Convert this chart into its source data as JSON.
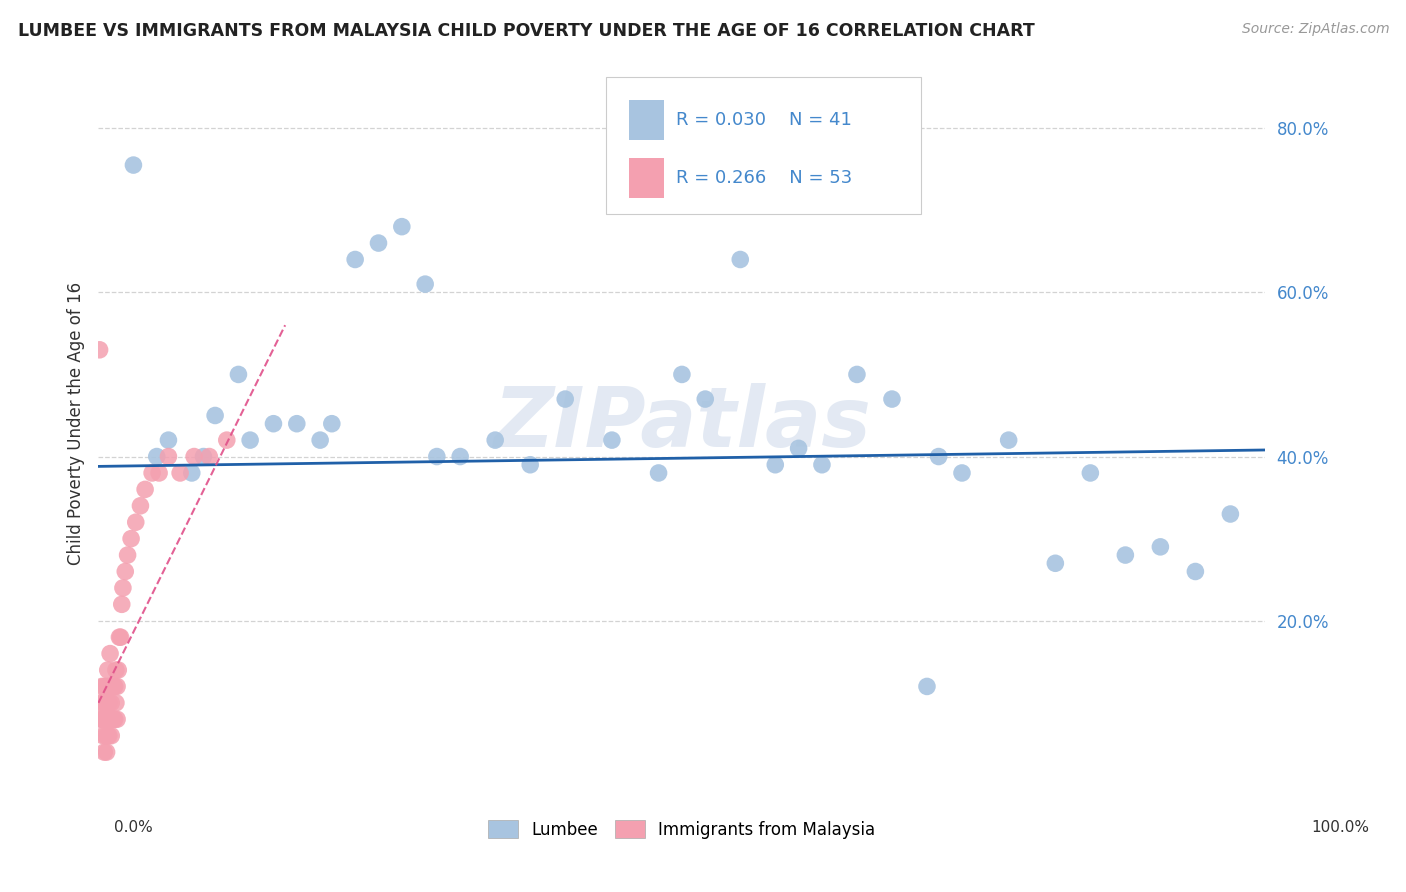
{
  "title": "LUMBEE VS IMMIGRANTS FROM MALAYSIA CHILD POVERTY UNDER THE AGE OF 16 CORRELATION CHART",
  "source": "Source: ZipAtlas.com",
  "ylabel": "Child Poverty Under the Age of 16",
  "xlim": [
    0,
    1.0
  ],
  "ylim": [
    0,
    0.88
  ],
  "xticks": [
    0.0,
    0.2,
    0.4,
    0.6,
    0.8,
    1.0
  ],
  "xticklabels_left": "0.0%",
  "xticklabels_right": "100.0%",
  "yticks": [
    0.2,
    0.4,
    0.6,
    0.8
  ],
  "yticklabels": [
    "20.0%",
    "40.0%",
    "60.0%",
    "80.0%"
  ],
  "lumbee_color": "#a8c4e0",
  "malaysia_color": "#f4a0b0",
  "trendline_lumbee_color": "#2060a8",
  "trendline_malaysia_color": "#e0508a",
  "legend_R_lumbee": "R = 0.030",
  "legend_N_lumbee": "N = 41",
  "legend_R_malaysia": "R = 0.266",
  "legend_N_malaysia": "N = 53",
  "lumbee_x": [
    0.03,
    0.05,
    0.08,
    0.1,
    0.12,
    0.15,
    0.17,
    0.19,
    0.22,
    0.24,
    0.26,
    0.28,
    0.31,
    0.34,
    0.37,
    0.4,
    0.44,
    0.5,
    0.52,
    0.55,
    0.58,
    0.62,
    0.65,
    0.68,
    0.71,
    0.74,
    0.78,
    0.82,
    0.85,
    0.88,
    0.91,
    0.94,
    0.97,
    0.06,
    0.09,
    0.13,
    0.2,
    0.29,
    0.48,
    0.6,
    0.72
  ],
  "lumbee_y": [
    0.755,
    0.4,
    0.38,
    0.45,
    0.5,
    0.44,
    0.44,
    0.42,
    0.64,
    0.66,
    0.68,
    0.61,
    0.4,
    0.42,
    0.39,
    0.47,
    0.42,
    0.5,
    0.47,
    0.64,
    0.39,
    0.39,
    0.5,
    0.47,
    0.12,
    0.38,
    0.42,
    0.27,
    0.38,
    0.28,
    0.29,
    0.26,
    0.33,
    0.42,
    0.4,
    0.42,
    0.44,
    0.4,
    0.38,
    0.41,
    0.4
  ],
  "malaysia_x": [
    0.001,
    0.002,
    0.002,
    0.003,
    0.003,
    0.004,
    0.004,
    0.005,
    0.005,
    0.005,
    0.006,
    0.006,
    0.007,
    0.007,
    0.007,
    0.008,
    0.008,
    0.008,
    0.009,
    0.009,
    0.01,
    0.01,
    0.01,
    0.011,
    0.011,
    0.012,
    0.012,
    0.013,
    0.013,
    0.014,
    0.014,
    0.015,
    0.015,
    0.016,
    0.016,
    0.017,
    0.018,
    0.019,
    0.02,
    0.021,
    0.023,
    0.025,
    0.028,
    0.032,
    0.036,
    0.04,
    0.046,
    0.052,
    0.06,
    0.07,
    0.082,
    0.095,
    0.11
  ],
  "malaysia_y": [
    0.53,
    0.1,
    0.08,
    0.08,
    0.12,
    0.06,
    0.1,
    0.04,
    0.08,
    0.12,
    0.06,
    0.1,
    0.04,
    0.08,
    0.12,
    0.06,
    0.1,
    0.14,
    0.06,
    0.1,
    0.08,
    0.12,
    0.16,
    0.06,
    0.1,
    0.08,
    0.12,
    0.08,
    0.12,
    0.08,
    0.12,
    0.1,
    0.14,
    0.08,
    0.12,
    0.14,
    0.18,
    0.18,
    0.22,
    0.24,
    0.26,
    0.28,
    0.3,
    0.32,
    0.34,
    0.36,
    0.38,
    0.38,
    0.4,
    0.38,
    0.4,
    0.4,
    0.42
  ],
  "background_color": "#ffffff",
  "grid_color": "#c8c8c8",
  "yaxis_color": "#4488cc",
  "watermark_text": "ZIPatlas",
  "trendline_lumbee_y0": 0.388,
  "trendline_lumbee_y1": 0.408,
  "trendline_malaysia_x0": 0.0,
  "trendline_malaysia_x1": 0.16,
  "trendline_malaysia_y0": 0.1,
  "trendline_malaysia_y1": 0.56
}
